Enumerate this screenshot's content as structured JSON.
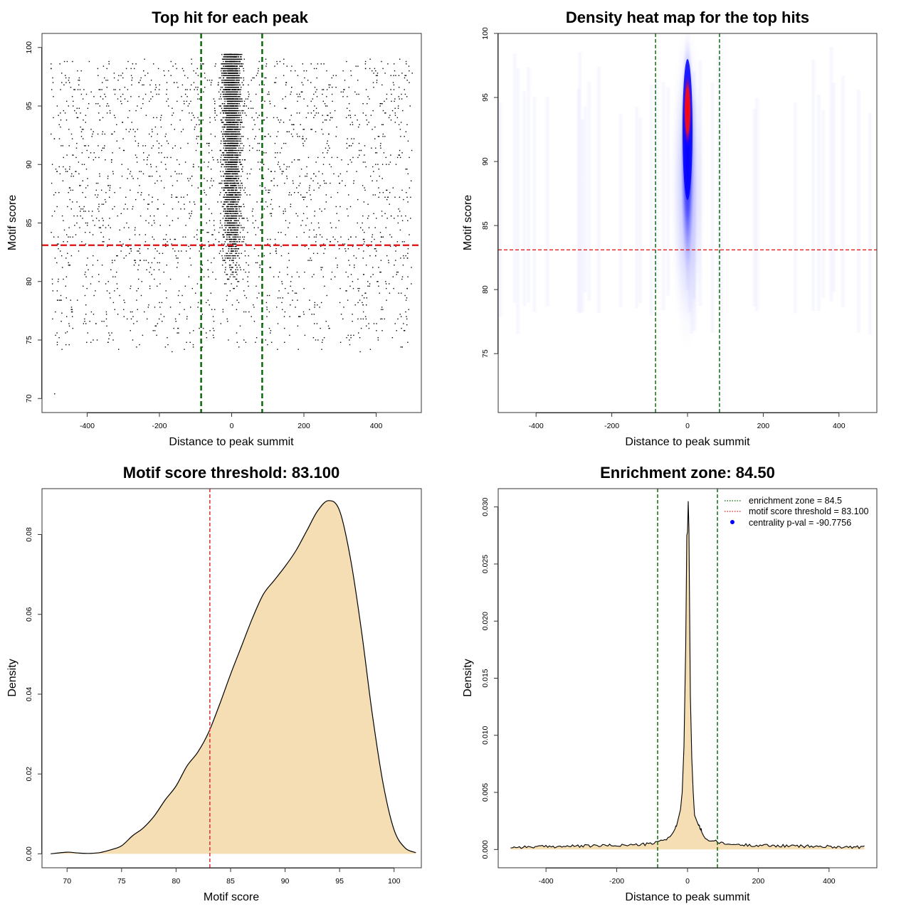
{
  "colors": {
    "zone": "#006400",
    "threshold": "#e02020",
    "fill": "#f5deb3",
    "heat_low": "#ffffff",
    "heat_mid": "#0000ff",
    "heat_high": "#ff0000",
    "pval_dot": "#0000ff"
  },
  "chart_data": [
    {
      "type": "scatter",
      "title": "Top hit for each peak",
      "xlabel": "Distance to peak summit",
      "ylabel": "Motif score",
      "xlim": [
        -525,
        525
      ],
      "ylim": [
        68.8,
        101.2
      ],
      "xticks": [
        "-400",
        "-200",
        "0",
        "200",
        "400"
      ],
      "yticks": [
        "70",
        "75",
        "80",
        "85",
        "90",
        "95",
        "100"
      ],
      "grid": false,
      "lines": {
        "vertical": [
          -84.5,
          84.5
        ],
        "horizontal": [
          83.1
        ]
      },
      "summary": {
        "point_count": 6000,
        "center_cluster": {
          "x_mean": 0,
          "x_sd": 12,
          "y_range": [
            80,
            99.5
          ]
        },
        "background": {
          "x_range": [
            -500,
            500
          ],
          "y_range": [
            74,
            99
          ]
        },
        "outliers": [
          [
            -490,
            70.4
          ],
          [
            -340,
            75.1
          ],
          [
            -455,
            75.7
          ],
          [
            -470,
            77.3
          ],
          [
            445,
            75.2
          ],
          [
            485,
            76.3
          ]
        ]
      }
    },
    {
      "type": "heatmap",
      "title": "Density heat map for the top hits",
      "xlabel": "Distance to peak summit",
      "ylabel": "Motif score",
      "xlim": [
        -500,
        500
      ],
      "ylim": [
        70.4,
        100
      ],
      "xticks": [
        "-400",
        "-200",
        "0",
        "200",
        "400"
      ],
      "yticks": [
        "75",
        "80",
        "85",
        "90",
        "95",
        "100"
      ],
      "lines": {
        "vertical": [
          -84.5,
          84.5
        ],
        "horizontal": [
          83.1
        ]
      },
      "density_peak": {
        "x": 0,
        "y": 94,
        "x_spread": 6,
        "y_spread": 5
      },
      "colorscale": [
        "white",
        "blue",
        "red"
      ]
    },
    {
      "type": "area",
      "title": "Motif score threshold: 83.100",
      "xlabel": "Motif score",
      "ylabel": "Density",
      "xlim": [
        67.7,
        102.5
      ],
      "ylim": [
        -0.0035,
        0.0915
      ],
      "xticks": [
        "70",
        "75",
        "80",
        "85",
        "90",
        "95",
        "100"
      ],
      "yticks": [
        "0.00",
        "0.02",
        "0.04",
        "0.06",
        "0.08"
      ],
      "lines": {
        "vertical": [
          83.1
        ]
      },
      "x": [
        68.5,
        70,
        71,
        72,
        73,
        74,
        75,
        76,
        77,
        78,
        79,
        80,
        81,
        82,
        83,
        84,
        85,
        86,
        87,
        88,
        89,
        90,
        91,
        92,
        93,
        94,
        95,
        96,
        97,
        98,
        99,
        100,
        101,
        102
      ],
      "y": [
        0.0,
        0.0004,
        0.0002,
        0.0001,
        0.0003,
        0.001,
        0.002,
        0.0045,
        0.0065,
        0.0095,
        0.0135,
        0.017,
        0.022,
        0.0255,
        0.0305,
        0.0375,
        0.045,
        0.052,
        0.059,
        0.065,
        0.0685,
        0.072,
        0.076,
        0.081,
        0.086,
        0.0885,
        0.086,
        0.074,
        0.056,
        0.035,
        0.0175,
        0.006,
        0.0015,
        0.0003
      ]
    },
    {
      "type": "area",
      "title": "Enrichment zone: 84.50",
      "xlabel": "Distance to peak summit",
      "ylabel": "Density",
      "xlim": [
        -535,
        535
      ],
      "ylim": [
        -0.0016,
        0.0316
      ],
      "xticks": [
        "-400",
        "-200",
        "0",
        "200",
        "400"
      ],
      "yticks": [
        "0.000",
        "0.005",
        "0.010",
        "0.015",
        "0.020",
        "0.025",
        "0.030"
      ],
      "lines": {
        "vertical": [
          -84.5,
          84.5
        ]
      },
      "x": [
        -500,
        -300,
        -150,
        -100,
        -80,
        -60,
        -40,
        -30,
        -20,
        -15,
        -10,
        -5,
        -2,
        0,
        2,
        4,
        6,
        8,
        12,
        16,
        20,
        30,
        40,
        50,
        60,
        80,
        100,
        150,
        300,
        500
      ],
      "y": [
        0.0002,
        0.0003,
        0.0004,
        0.0005,
        0.0007,
        0.0009,
        0.0015,
        0.0022,
        0.0035,
        0.005,
        0.009,
        0.018,
        0.0275,
        0.0278,
        0.0305,
        0.028,
        0.0205,
        0.0135,
        0.008,
        0.005,
        0.003,
        0.0022,
        0.0016,
        0.001,
        0.0008,
        0.0007,
        0.0005,
        0.0004,
        0.0003,
        0.0002
      ],
      "legend": {
        "position": "top-right",
        "entries": [
          {
            "label": "enrichment zone = 84.5",
            "kind": "dotted-line",
            "color": "#006400"
          },
          {
            "label": "motif score threshold = 83.100",
            "kind": "dotted-line",
            "color": "#e02020"
          },
          {
            "label": "centrality p-val = -90.7756",
            "kind": "point",
            "color": "#0000ff"
          }
        ]
      }
    }
  ]
}
